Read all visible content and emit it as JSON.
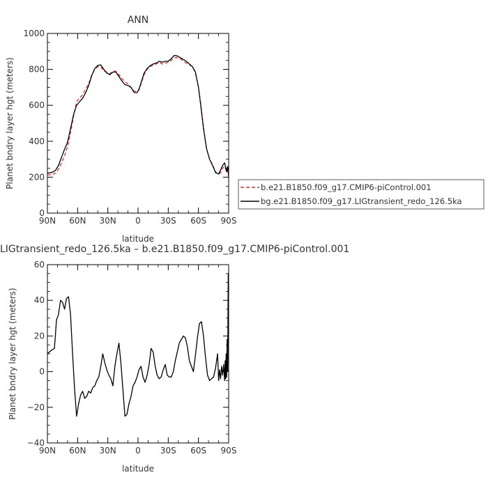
{
  "chart_data": [
    {
      "type": "line",
      "title": "ANN",
      "xlabel": "latitude",
      "ylabel": "Planet bndry layer hgt (meters)",
      "xlim": [
        90,
        -90
      ],
      "ylim": [
        0,
        1000
      ],
      "x_ticks": [
        90,
        60,
        30,
        0,
        -30,
        -60,
        -90
      ],
      "x_tick_labels": [
        "90N",
        "60N",
        "30N",
        "0",
        "30S",
        "60S",
        "90S"
      ],
      "y_ticks": [
        0,
        200,
        400,
        600,
        800,
        1000
      ],
      "y_tick_labels": [
        "0",
        "200",
        "400",
        "600",
        "800",
        "1000"
      ],
      "legend_placement": "outside-right",
      "series": [
        {
          "name": "b.e21.B1850.f09_g17.CMIP6-piControl.001",
          "color": "#e03030",
          "dash": "dashed",
          "x": [
            90,
            85,
            82,
            79,
            76,
            73,
            70,
            67,
            64,
            61,
            58,
            55,
            52,
            49,
            46,
            43,
            40,
            37,
            34,
            31,
            28,
            25,
            22,
            19,
            16,
            13,
            10,
            7,
            4,
            1,
            -1,
            -3,
            -6,
            -9,
            -12,
            -15,
            -18,
            -21,
            -24,
            -27,
            -30,
            -33,
            -36,
            -39,
            -42,
            -45,
            -48,
            -51,
            -54,
            -57,
            -60,
            -62,
            -65,
            -68,
            -71,
            -74,
            -77,
            -80,
            -82,
            -84,
            -86,
            -87,
            -88,
            -89,
            -90
          ],
          "y": [
            212,
            215,
            222,
            245,
            280,
            320,
            370,
            450,
            540,
            620,
            640,
            660,
            690,
            720,
            770,
            800,
            815,
            815,
            790,
            785,
            775,
            790,
            790,
            770,
            750,
            730,
            720,
            700,
            680,
            675,
            685,
            720,
            770,
            800,
            815,
            825,
            830,
            840,
            830,
            835,
            840,
            850,
            865,
            865,
            860,
            845,
            835,
            825,
            815,
            780,
            700,
            620,
            480,
            360,
            300,
            270,
            230,
            215,
            225,
            250,
            260,
            245,
            230,
            240,
            210
          ]
        },
        {
          "name": "bg.e21.B1850.f09_g17.LIGtransient_redo_126.5ka",
          "color": "#000000",
          "dash": "solid",
          "x": [
            90,
            85,
            82,
            79,
            76,
            73,
            70,
            67,
            64,
            61,
            58,
            55,
            52,
            49,
            46,
            43,
            40,
            37,
            34,
            31,
            28,
            25,
            22,
            19,
            16,
            13,
            10,
            7,
            4,
            1,
            -1,
            -3,
            -6,
            -9,
            -12,
            -15,
            -18,
            -21,
            -24,
            -27,
            -30,
            -33,
            -36,
            -39,
            -42,
            -45,
            -48,
            -51,
            -54,
            -57,
            -60,
            -62,
            -65,
            -68,
            -71,
            -74,
            -77,
            -80,
            -82,
            -84,
            -86,
            -87,
            -88,
            -89,
            -90
          ],
          "y": [
            222,
            227,
            238,
            265,
            310,
            355,
            395,
            470,
            550,
            600,
            620,
            640,
            670,
            710,
            765,
            805,
            822,
            825,
            800,
            780,
            770,
            785,
            785,
            760,
            735,
            715,
            710,
            700,
            672,
            670,
            690,
            725,
            780,
            805,
            820,
            830,
            835,
            845,
            840,
            845,
            845,
            860,
            878,
            875,
            865,
            855,
            845,
            830,
            815,
            785,
            700,
            610,
            470,
            360,
            300,
            265,
            225,
            218,
            240,
            265,
            280,
            255,
            230,
            260,
            200
          ]
        }
      ]
    },
    {
      "type": "line",
      "title": "LIGtransient_redo_126.5ka – b.e21.B1850.f09_g17.CMIP6-piControl.001",
      "xlabel": "latitude",
      "ylabel": "Planet bndry layer hgt (meters)",
      "xlim": [
        90,
        -90
      ],
      "ylim": [
        -40,
        60
      ],
      "x_ticks": [
        90,
        60,
        30,
        0,
        -30,
        -60,
        -90
      ],
      "x_tick_labels": [
        "90N",
        "60N",
        "30N",
        "0",
        "30S",
        "60S",
        "90S"
      ],
      "y_ticks": [
        -40,
        -20,
        0,
        20,
        40,
        60
      ],
      "y_tick_labels": [
        "−40",
        "−20",
        "0",
        "20",
        "40",
        "60"
      ],
      "series": [
        {
          "color": "#000000",
          "dash": "solid",
          "x": [
            90,
            88,
            86,
            83,
            81,
            79,
            77,
            75,
            73,
            71,
            69,
            67,
            65,
            63,
            61,
            59,
            57,
            55,
            53,
            51,
            49,
            47,
            45,
            43,
            41,
            39,
            37,
            35,
            33,
            31,
            29,
            27,
            25,
            23,
            21,
            19,
            17,
            15,
            13,
            11,
            9,
            7,
            5,
            3,
            1,
            -1,
            -3,
            -5,
            -7,
            -9,
            -11,
            -13,
            -15,
            -17,
            -19,
            -21,
            -23,
            -25,
            -27,
            -29,
            -31,
            -33,
            -35,
            -37,
            -39,
            -41,
            -43,
            -45,
            -47,
            -49,
            -51,
            -53,
            -55,
            -57,
            -59,
            -61,
            -63,
            -65,
            -67,
            -69,
            -71,
            -73,
            -75,
            -77,
            -79,
            -80,
            -81,
            -82,
            -83,
            -84,
            -85,
            -86,
            -86.5,
            -87,
            -87.5,
            -88,
            -88.5,
            -89,
            -89.3,
            -89.6,
            -90
          ],
          "y": [
            10,
            11,
            12,
            13,
            29,
            32,
            40,
            39,
            35,
            41,
            42,
            32,
            10,
            -10,
            -25,
            -18,
            -13,
            -11,
            -15,
            -14,
            -11,
            -12,
            -9,
            -8,
            -5,
            -3,
            3,
            10,
            5,
            1,
            -2,
            -4,
            -8,
            3,
            10,
            16,
            5,
            -10,
            -25,
            -24,
            -18,
            -14,
            -8,
            -6,
            -3,
            1,
            3,
            -3,
            -6,
            -2,
            4,
            13,
            11,
            3,
            -2,
            -4,
            -3,
            1,
            4,
            -2,
            -3,
            -3,
            0,
            6,
            11,
            16,
            18,
            20,
            19,
            14,
            6,
            3,
            0,
            9,
            19,
            27,
            28,
            20,
            8,
            -2,
            -5,
            -4,
            -3,
            2,
            10,
            -5,
            1,
            -4,
            3,
            -2,
            4,
            -5,
            6,
            -4,
            10,
            -3,
            18,
            0,
            30,
            55,
            45
          ]
        }
      ]
    }
  ],
  "legend_entries": [
    "b.e21.B1850.f09_g17.CMIP6-piControl.001",
    "bg.e21.B1850.f09_g17.LIGtransient_redo_126.5ka"
  ]
}
